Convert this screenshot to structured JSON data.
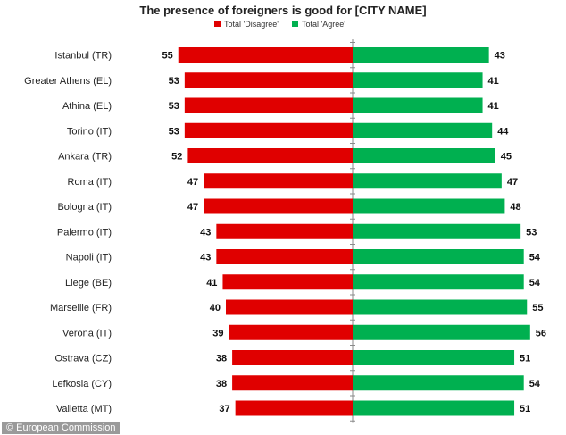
{
  "chart_data": {
    "type": "bar",
    "title": "The presence of foreigners is good for [CITY NAME]",
    "categories": [
      "Istanbul (TR)",
      "Greater Athens (EL)",
      "Athina (EL)",
      "Torino (IT)",
      "Ankara (TR)",
      "Roma (IT)",
      "Bologna (IT)",
      "Palermo (IT)",
      "Napoli (IT)",
      "Liege (BE)",
      "Marseille (FR)",
      "Verona (IT)",
      "Ostrava (CZ)",
      "Lefkosia (CY)",
      "Valletta (MT)"
    ],
    "series": [
      {
        "name": "Total 'Disagree'",
        "color": "#e00000",
        "values": [
          55,
          53,
          53,
          53,
          52,
          47,
          47,
          43,
          43,
          41,
          40,
          39,
          38,
          38,
          37
        ]
      },
      {
        "name": "Total 'Agree'",
        "color": "#00b050",
        "values": [
          43,
          41,
          41,
          44,
          45,
          47,
          48,
          53,
          54,
          54,
          55,
          56,
          51,
          54,
          51
        ]
      }
    ],
    "orientation": "horizontal-diverging",
    "legend": "top-center",
    "grid": false
  },
  "credit": "© European Commission"
}
